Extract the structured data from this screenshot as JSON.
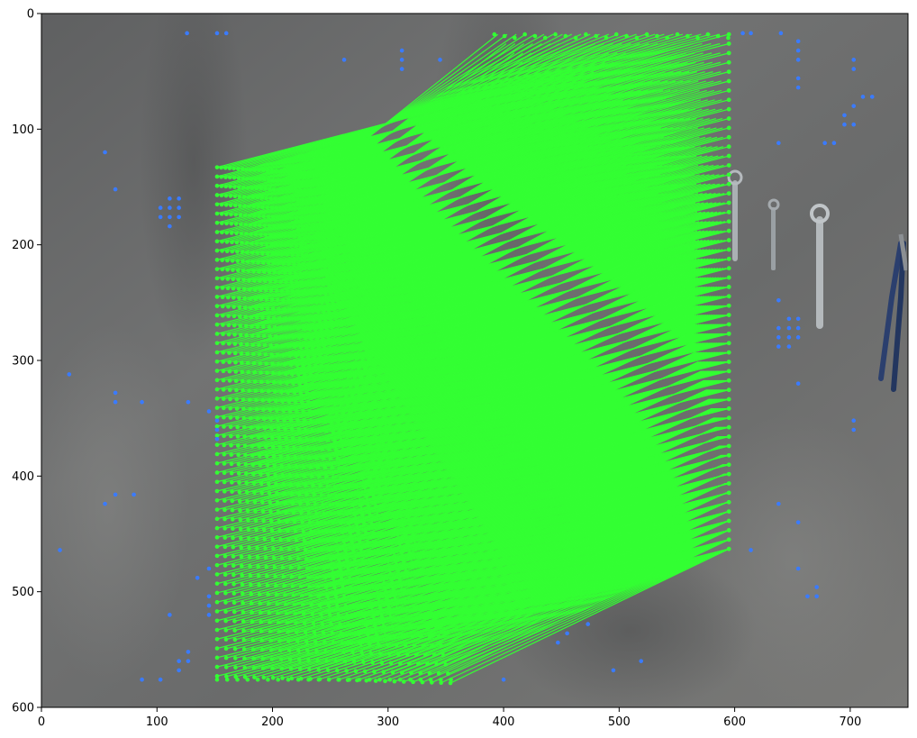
{
  "chart_data": {
    "type": "scatter",
    "title": "",
    "xlabel": "",
    "ylabel": "",
    "xlim": [
      0,
      750
    ],
    "ylim": [
      600,
      0
    ],
    "y_inverted": true,
    "grid": false,
    "legend": "none",
    "x_ticks": [
      0,
      100,
      200,
      300,
      400,
      500,
      600,
      700
    ],
    "y_ticks": [
      0,
      100,
      200,
      300,
      400,
      500,
      600
    ],
    "background": "grey concrete photograph with wrenches and pliers on the right",
    "colors": {
      "match": "#33ff33",
      "keypoint": "#3a7bff",
      "photo_base": "#6b6c6c"
    },
    "match_grid": {
      "left_x_range": [
        152,
        354
      ],
      "left_y_range": [
        136,
        576
      ],
      "right_x": 595,
      "right_y_range": [
        18,
        463
      ],
      "rows": 56
    },
    "series": [
      {
        "kind": "keypoints",
        "points": [
          [
            126,
            17
          ],
          [
            152,
            17
          ],
          [
            160,
            17
          ],
          [
            312,
            32
          ],
          [
            312,
            40
          ],
          [
            312,
            48
          ],
          [
            262,
            40
          ],
          [
            345,
            40
          ],
          [
            55,
            120
          ],
          [
            64,
            152
          ],
          [
            103,
            168
          ],
          [
            111,
            160
          ],
          [
            119,
            160
          ],
          [
            103,
            176
          ],
          [
            111,
            168
          ],
          [
            119,
            168
          ],
          [
            111,
            176
          ],
          [
            119,
            176
          ],
          [
            111,
            184
          ],
          [
            24,
            312
          ],
          [
            64,
            328
          ],
          [
            64,
            336
          ],
          [
            87,
            336
          ],
          [
            127,
            336
          ],
          [
            145,
            344
          ],
          [
            152,
            352
          ],
          [
            152,
            360
          ],
          [
            152,
            368
          ],
          [
            55,
            424
          ],
          [
            64,
            416
          ],
          [
            80,
            416
          ],
          [
            16,
            464
          ],
          [
            145,
            480
          ],
          [
            135,
            488
          ],
          [
            145,
            504
          ],
          [
            145,
            512
          ],
          [
            145,
            520
          ],
          [
            111,
            520
          ],
          [
            127,
            552
          ],
          [
            127,
            560
          ],
          [
            119,
            560
          ],
          [
            119,
            568
          ],
          [
            87,
            576
          ],
          [
            103,
            576
          ],
          [
            400,
            576
          ],
          [
            447,
            544
          ],
          [
            455,
            536
          ],
          [
            473,
            528
          ],
          [
            495,
            568
          ],
          [
            519,
            560
          ],
          [
            607,
            17
          ],
          [
            614,
            17
          ],
          [
            640,
            17
          ],
          [
            655,
            24
          ],
          [
            655,
            32
          ],
          [
            655,
            40
          ],
          [
            655,
            56
          ],
          [
            655,
            64
          ],
          [
            703,
            40
          ],
          [
            703,
            48
          ],
          [
            711,
            72
          ],
          [
            719,
            72
          ],
          [
            703,
            80
          ],
          [
            695,
            88
          ],
          [
            703,
            96
          ],
          [
            695,
            96
          ],
          [
            638,
            112
          ],
          [
            678,
            112
          ],
          [
            686,
            112
          ],
          [
            638,
            248
          ],
          [
            638,
            272
          ],
          [
            638,
            280
          ],
          [
            638,
            288
          ],
          [
            647,
            264
          ],
          [
            655,
            264
          ],
          [
            647,
            272
          ],
          [
            655,
            272
          ],
          [
            647,
            280
          ],
          [
            655,
            280
          ],
          [
            647,
            288
          ],
          [
            655,
            320
          ],
          [
            703,
            352
          ],
          [
            703,
            360
          ],
          [
            638,
            424
          ],
          [
            655,
            440
          ],
          [
            614,
            464
          ],
          [
            655,
            480
          ],
          [
            663,
            504
          ],
          [
            671,
            496
          ],
          [
            671,
            504
          ]
        ]
      }
    ]
  }
}
